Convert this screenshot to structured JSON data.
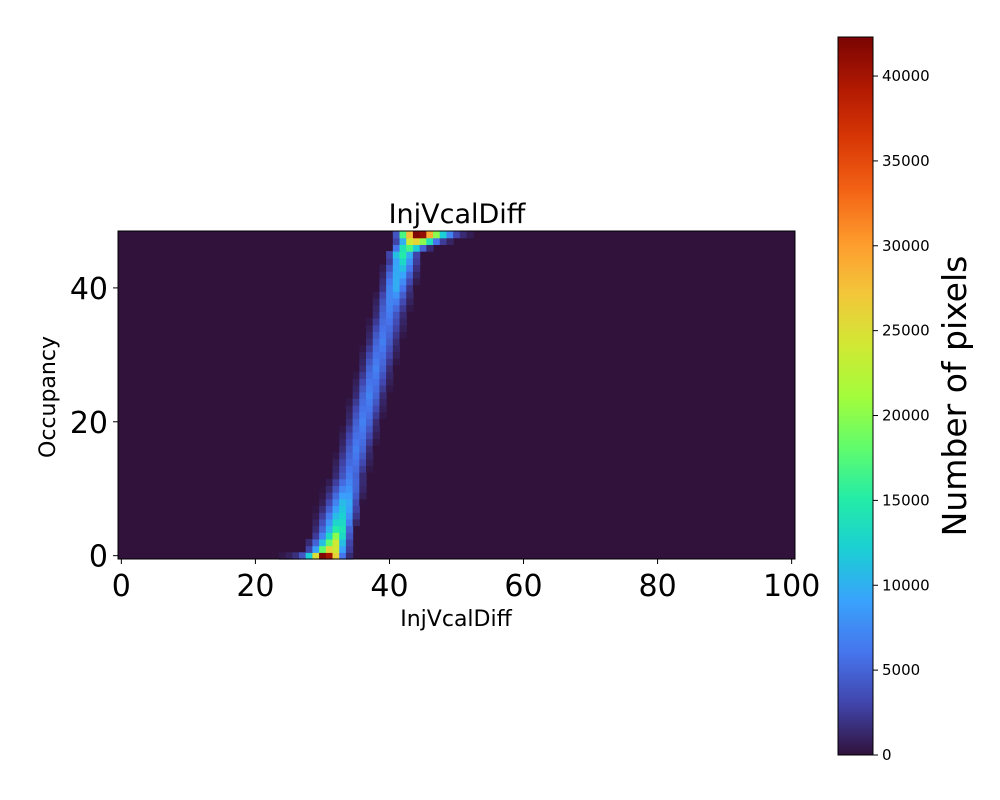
{
  "chart_data": {
    "type": "heatmap",
    "title": "InjVcalDiff",
    "xlabel": "InjVcalDiff",
    "ylabel": "Occupancy",
    "xlim": [
      -0.5,
      100.5
    ],
    "ylim": [
      -0.5,
      48.5
    ],
    "xticks": [
      "0",
      "20",
      "40",
      "60",
      "80",
      "100"
    ],
    "yticks": [
      "0",
      "20",
      "40"
    ],
    "colorbar": {
      "label": "Number of pixels",
      "range": [
        0,
        42300
      ],
      "ticks": [
        "0",
        "5000",
        "10000",
        "15000",
        "20000",
        "25000",
        "30000",
        "35000",
        "40000"
      ]
    },
    "colormap": [
      "#30123b",
      "#4145ab",
      "#4675ed",
      "#39a2fc",
      "#1bcfd4",
      "#24eca6",
      "#61fc6c",
      "#a4fc3b",
      "#d1e834",
      "#f3c63a",
      "#fe9b2d",
      "#f36315",
      "#d93806",
      "#b11901",
      "#7a0403"
    ],
    "background_value": 0,
    "curve_model": "S-curve: for each occupancy bin y, pixel counts spread across InjVcalDiff around a threshold rising from ~29 at y=0 to ~44 at y=48; ~40000 pixels at the lowest and highest occupancy bins",
    "rows": [
      {
        "y": 0,
        "cells": [
          [
            24,
            400
          ],
          [
            25,
            900
          ],
          [
            26,
            1800
          ],
          [
            27,
            4000
          ],
          [
            28,
            12000
          ],
          [
            29,
            25000
          ],
          [
            30,
            42000
          ],
          [
            31,
            40000
          ],
          [
            32,
            26000
          ],
          [
            33,
            6000
          ],
          [
            34,
            1500
          ]
        ]
      },
      {
        "y": 1,
        "cells": [
          [
            28,
            3000
          ],
          [
            29,
            9000
          ],
          [
            30,
            18000
          ],
          [
            31,
            26000
          ],
          [
            32,
            24000
          ],
          [
            33,
            9000
          ],
          [
            34,
            2500
          ]
        ]
      },
      {
        "y": 2,
        "cells": [
          [
            28,
            1500
          ],
          [
            29,
            5000
          ],
          [
            30,
            11000
          ],
          [
            31,
            18000
          ],
          [
            32,
            24000
          ],
          [
            33,
            11000
          ],
          [
            34,
            3000
          ]
        ]
      },
      {
        "y": 3,
        "cells": [
          [
            29,
            2500
          ],
          [
            30,
            7000
          ],
          [
            31,
            13000
          ],
          [
            32,
            20000
          ],
          [
            33,
            13000
          ],
          [
            34,
            4000
          ]
        ]
      },
      {
        "y": 4,
        "cells": [
          [
            29,
            1500
          ],
          [
            30,
            5000
          ],
          [
            31,
            10000
          ],
          [
            32,
            15000
          ],
          [
            33,
            14000
          ],
          [
            34,
            5000
          ]
        ]
      },
      {
        "y": 12,
        "cells": [
          [
            32,
            1500
          ],
          [
            33,
            4000
          ],
          [
            34,
            6500
          ],
          [
            35,
            5000
          ],
          [
            36,
            1500
          ]
        ]
      },
      {
        "y": 24,
        "cells": [
          [
            35,
            1500
          ],
          [
            36,
            5000
          ],
          [
            37,
            7000
          ],
          [
            38,
            5000
          ],
          [
            39,
            1500
          ]
        ]
      },
      {
        "y": 36,
        "cells": [
          [
            38,
            1500
          ],
          [
            39,
            5000
          ],
          [
            40,
            6500
          ],
          [
            41,
            4000
          ],
          [
            42,
            1500
          ]
        ]
      },
      {
        "y": 44,
        "cells": [
          [
            40,
            2500
          ],
          [
            41,
            9000
          ],
          [
            42,
            13000
          ],
          [
            43,
            8000
          ],
          [
            44,
            2500
          ]
        ]
      },
      {
        "y": 45,
        "cells": [
          [
            40,
            3000
          ],
          [
            41,
            11000
          ],
          [
            42,
            15000
          ],
          [
            43,
            10000
          ],
          [
            44,
            3000
          ]
        ]
      },
      {
        "y": 46,
        "cells": [
          [
            41,
            6000
          ],
          [
            42,
            14000
          ],
          [
            43,
            17000
          ],
          [
            44,
            12000
          ],
          [
            45,
            5000
          ],
          [
            46,
            1500
          ]
        ]
      },
      {
        "y": 47,
        "cells": [
          [
            41,
            3000
          ],
          [
            42,
            10000
          ],
          [
            43,
            24000
          ],
          [
            44,
            26000
          ],
          [
            45,
            20000
          ],
          [
            46,
            14000
          ],
          [
            47,
            6000
          ],
          [
            48,
            2500
          ],
          [
            49,
            1000
          ]
        ]
      },
      {
        "y": 48,
        "cells": [
          [
            41,
            4000
          ],
          [
            42,
            17000
          ],
          [
            43,
            28000
          ],
          [
            44,
            42000
          ],
          [
            45,
            41000
          ],
          [
            46,
            29000
          ],
          [
            47,
            20000
          ],
          [
            48,
            12000
          ],
          [
            49,
            7000
          ],
          [
            50,
            3000
          ],
          [
            51,
            1500
          ],
          [
            52,
            600
          ]
        ]
      }
    ]
  }
}
